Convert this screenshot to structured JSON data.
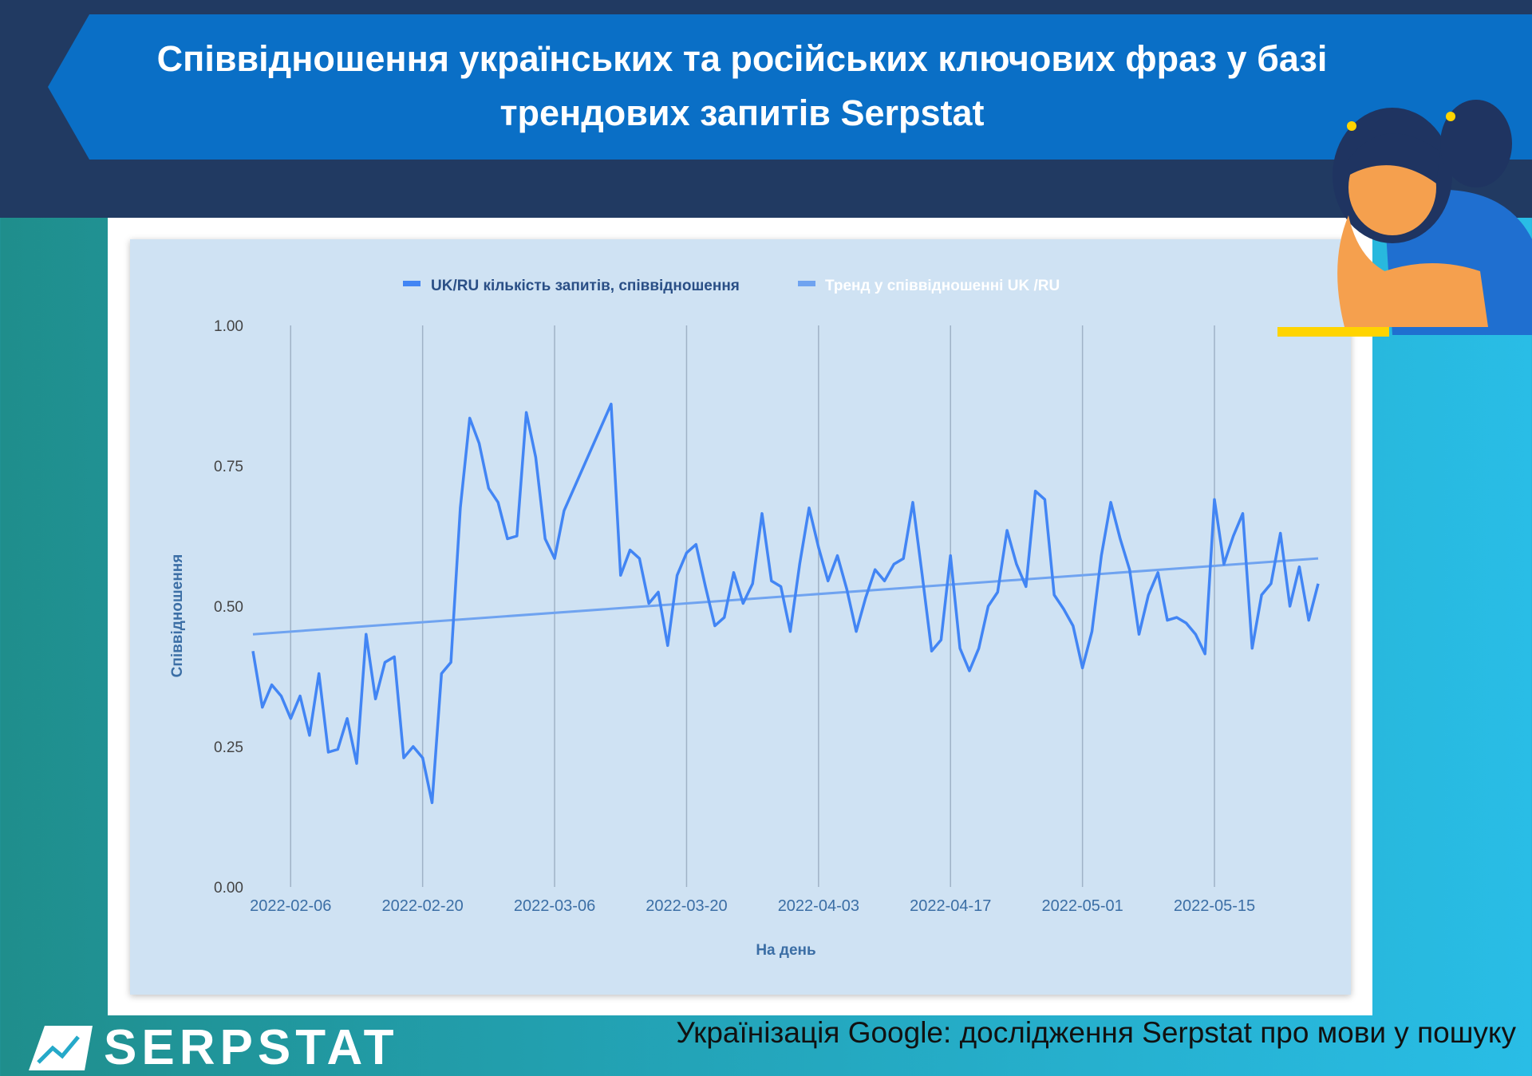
{
  "header": {
    "title_line1": "Співвідношення українських та російських ключових фраз у базі",
    "title_line2": "трендових запитів Serpstat"
  },
  "footer": {
    "logo": "SERPSTAT",
    "caption": "Українізація Google: дослідження Serpstat про мови у пошуку"
  },
  "colors": {
    "series": "#4285f4",
    "trend": "#6fa3f0",
    "background": "#cfe2f3",
    "banner": "#0a6fc6",
    "navy": "#213a62"
  },
  "chart_data": {
    "type": "line",
    "title": "",
    "xlabel": "На день",
    "ylabel": "Співвідношення",
    "ylim": [
      0,
      1
    ],
    "yticks": [
      "0.00",
      "0.25",
      "0.50",
      "0.75",
      "1.00"
    ],
    "ytick_values": [
      0,
      0.25,
      0.5,
      0.75,
      1
    ],
    "xticks": [
      "2022-02-06",
      "2022-02-20",
      "2022-03-06",
      "2022-03-20",
      "2022-04-03",
      "2022-04-17",
      "2022-05-01",
      "2022-05-15"
    ],
    "grid": "vertical",
    "legend_position": "top",
    "start_date": "2022-02-02",
    "end_date": "2022-05-26",
    "series": [
      {
        "name": "UK/RU кількість запитів, співвідношення",
        "values": [
          0.42,
          0.32,
          0.36,
          0.34,
          0.3,
          0.34,
          0.27,
          0.38,
          0.24,
          0.245,
          0.3,
          0.22,
          0.45,
          0.335,
          0.4,
          0.41,
          0.23,
          0.25,
          0.23,
          0.15,
          0.38,
          0.4,
          0.675,
          0.835,
          0.79,
          0.71,
          0.685,
          0.62,
          0.625,
          0.845,
          0.765,
          0.62,
          0.585,
          0.67,
          null,
          null,
          null,
          null,
          0.86,
          0.555,
          0.6,
          0.585,
          0.505,
          0.525,
          0.43,
          0.555,
          0.595,
          0.61,
          0.535,
          0.465,
          0.48,
          0.56,
          0.505,
          0.54,
          0.665,
          0.545,
          0.535,
          0.455,
          0.575,
          0.675,
          0.605,
          0.545,
          0.59,
          0.53,
          0.455,
          0.515,
          0.565,
          0.545,
          0.575,
          0.585,
          0.685,
          0.555,
          0.42,
          0.44,
          0.59,
          0.425,
          0.385,
          0.425,
          0.5,
          0.525,
          0.635,
          0.575,
          0.535,
          0.705,
          0.69,
          0.52,
          0.495,
          0.465,
          0.39,
          0.455,
          0.59,
          0.685,
          0.62,
          0.565,
          0.45,
          0.52,
          0.56,
          0.475,
          0.48,
          0.47,
          0.45,
          0.415,
          0.69,
          0.575,
          0.625,
          0.665,
          0.425,
          0.52,
          0.54,
          0.63,
          0.5,
          0.57,
          0.475,
          0.54
        ]
      },
      {
        "name": "Тренд у співвідношенні UK /RU",
        "type": "linear-trend",
        "start_value": 0.45,
        "end_value": 0.585
      }
    ]
  }
}
